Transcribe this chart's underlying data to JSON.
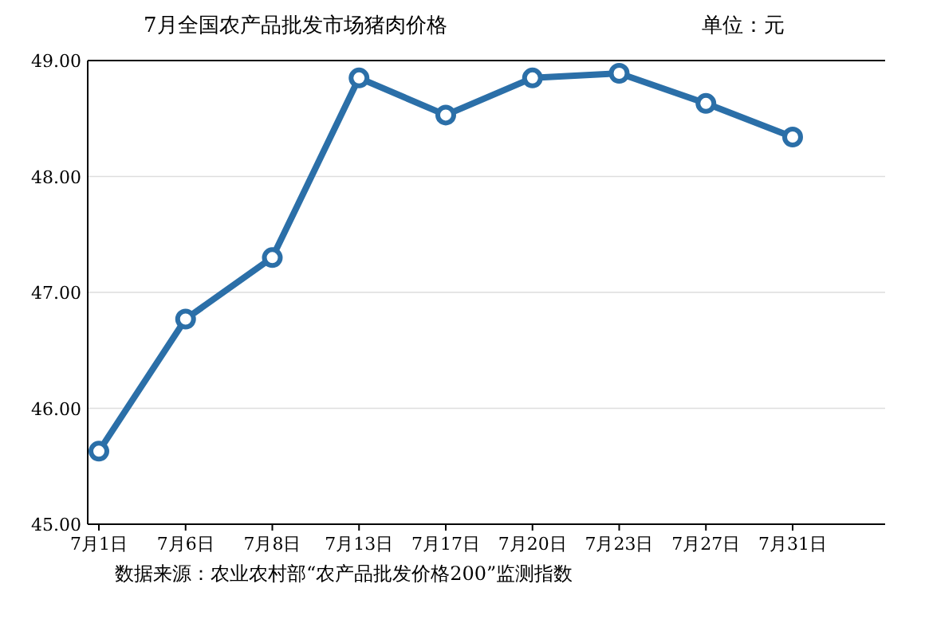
{
  "chart_data": {
    "type": "line",
    "title": "7月全国农产品批发市场猪肉价格",
    "ylabel": "单位：元",
    "annotations": [
      "数据来源：农业农村部“农产品批发价格200”监测指数"
    ],
    "categories": [
      "7月1日",
      "7月6日",
      "7月8日",
      "7月13日",
      "7月17日",
      "7月20日",
      "7月23日",
      "7月27日",
      "7月31日"
    ],
    "series": [
      {
        "color": "#2b6fa8",
        "values": [
          45.63,
          46.77,
          47.3,
          48.85,
          48.53,
          48.85,
          48.89,
          48.63,
          48.34
        ]
      }
    ],
    "ylim": [
      45,
      49
    ],
    "yticks": [
      {
        "value": 45,
        "label": "45.00"
      },
      {
        "value": 46,
        "label": "46.00"
      },
      {
        "value": 47,
        "label": "47.00"
      },
      {
        "value": 48,
        "label": "48.00"
      },
      {
        "value": 49,
        "label": "49.00"
      }
    ],
    "grid": "y",
    "marker": "circle",
    "line_style": "solid"
  }
}
